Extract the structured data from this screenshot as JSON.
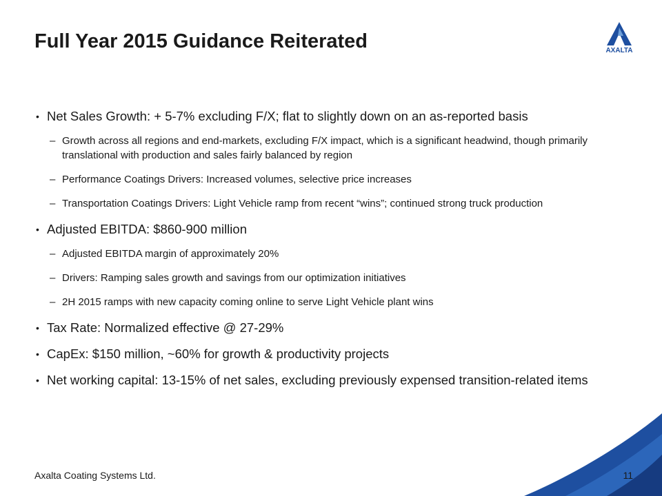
{
  "header": {
    "title": "Full Year 2015 Guidance Reiterated",
    "logo_text": "AXALTA"
  },
  "bullets": [
    {
      "text": "Net Sales Growth: + 5-7% excluding F/X; flat to slightly down on an as-reported basis",
      "sub": [
        "Growth across all regions and end-markets, excluding F/X impact, which is a significant headwind, though primarily translational with production and sales fairly balanced by region",
        "Performance Coatings Drivers: Increased volumes, selective price increases",
        "Transportation Coatings Drivers: Light Vehicle ramp from recent “wins”; continued strong truck production"
      ]
    },
    {
      "text": "Adjusted EBITDA: $860-900 million",
      "sub": [
        "Adjusted EBITDA margin of approximately 20%",
        "Drivers: Ramping sales growth and savings from our optimization initiatives",
        "2H 2015 ramps with new capacity coming online to serve Light Vehicle plant wins"
      ]
    },
    {
      "text": "Tax Rate: Normalized effective @ 27-29%",
      "sub": []
    },
    {
      "text": "CapEx: $150 million, ~60% for growth & productivity projects",
      "sub": []
    },
    {
      "text": "Net working capital: 13-15% of net sales, excluding previously expensed transition-related items",
      "sub": []
    }
  ],
  "footer": {
    "company": "Axalta Coating Systems Ltd.",
    "page": "11"
  }
}
